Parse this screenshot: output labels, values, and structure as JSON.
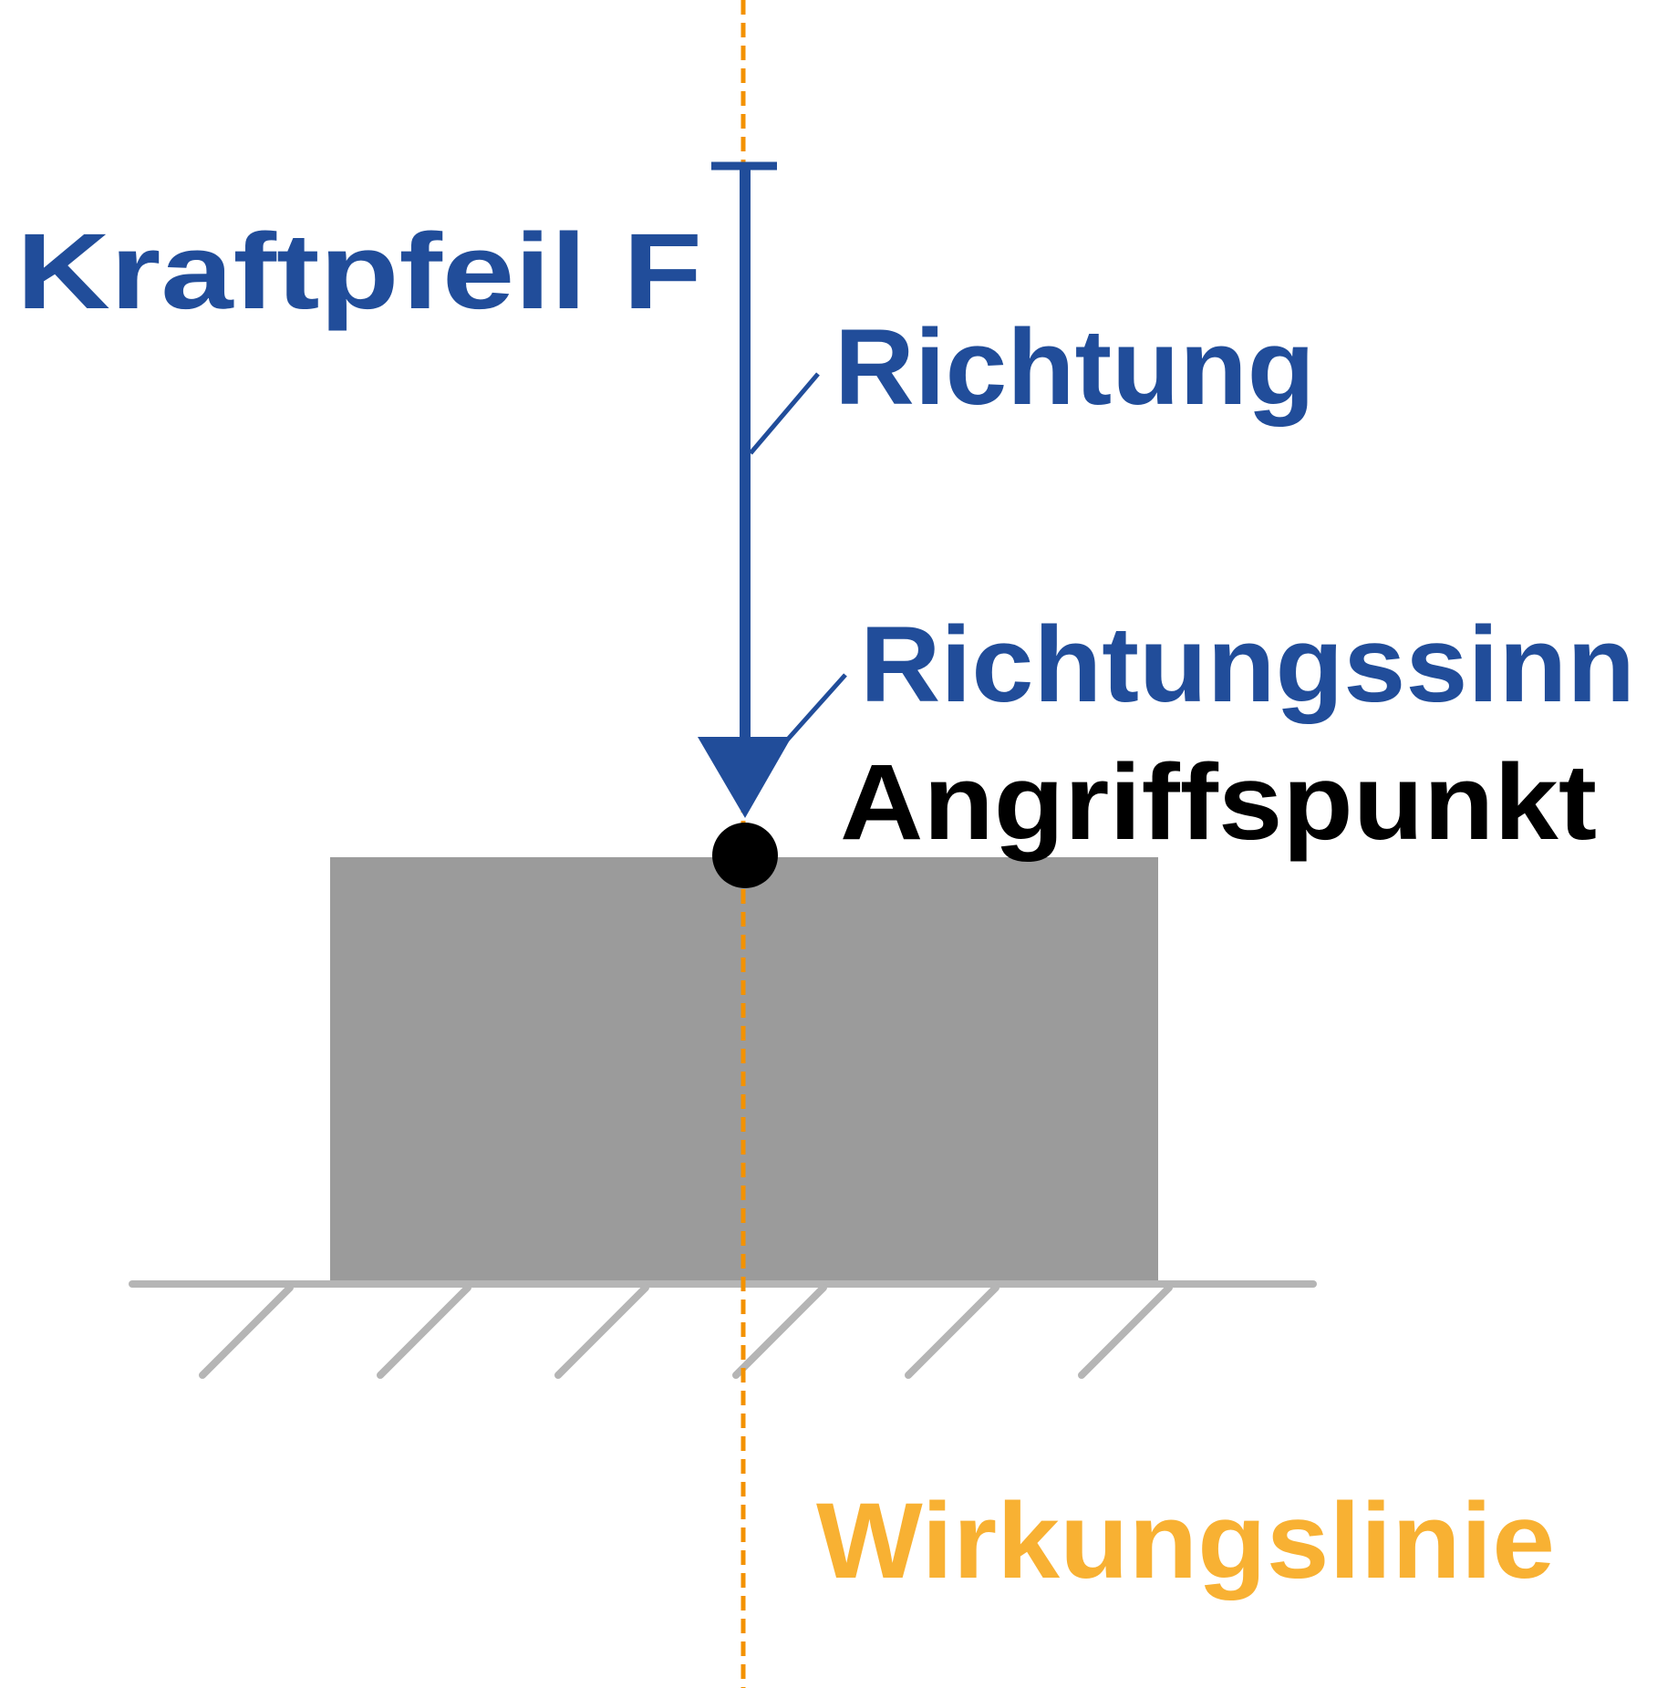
{
  "labels": {
    "force_arrow": "Kraftpfeil F",
    "direction": "Richtung",
    "sense_of_direction": "Richtungssinn",
    "point_of_application": "Angriffspunkt",
    "line_of_action": "Wirkungslinie"
  },
  "colors": {
    "force_blue": "#214D9A",
    "line_of_action_orange": "#F39200",
    "line_of_action_label": "#F8B133",
    "body_gray": "#9B9B9B",
    "ground_gray": "#B5B5B5",
    "point_black": "#000000"
  }
}
